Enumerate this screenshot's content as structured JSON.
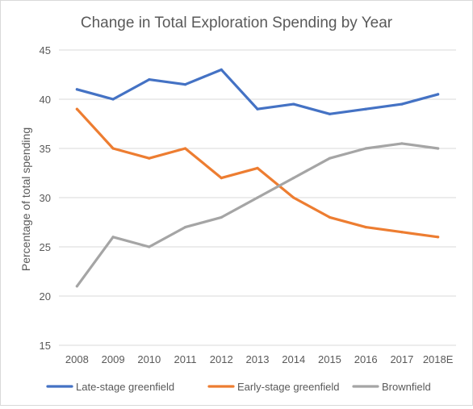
{
  "chart_data": {
    "type": "line",
    "title": "Change in Total Exploration Spending by Year",
    "xlabel": "",
    "ylabel": "Percentage of total spending",
    "categories": [
      "2008",
      "2009",
      "2010",
      "2011",
      "2012",
      "2013",
      "2014",
      "2015",
      "2016",
      "2017",
      "2018E"
    ],
    "ylim": [
      15,
      45
    ],
    "yticks": [
      "15",
      "20",
      "25",
      "30",
      "35",
      "40",
      "45"
    ],
    "grid": true,
    "legend": "bottom",
    "series": [
      {
        "name": "Late-stage greenfield",
        "color": "#4472C4",
        "values": [
          41,
          40,
          42,
          41.5,
          43,
          39,
          39.5,
          38.5,
          39,
          39.5,
          40.5
        ]
      },
      {
        "name": "Early-stage greenfield",
        "color": "#ED7D31",
        "values": [
          39,
          35,
          34,
          35,
          32,
          33,
          30,
          28,
          27,
          26.5,
          26
        ]
      },
      {
        "name": "Brownfield",
        "color": "#A5A5A5",
        "values": [
          21,
          26,
          25,
          27,
          28,
          30,
          32,
          34,
          35,
          35.5,
          35
        ]
      }
    ]
  }
}
